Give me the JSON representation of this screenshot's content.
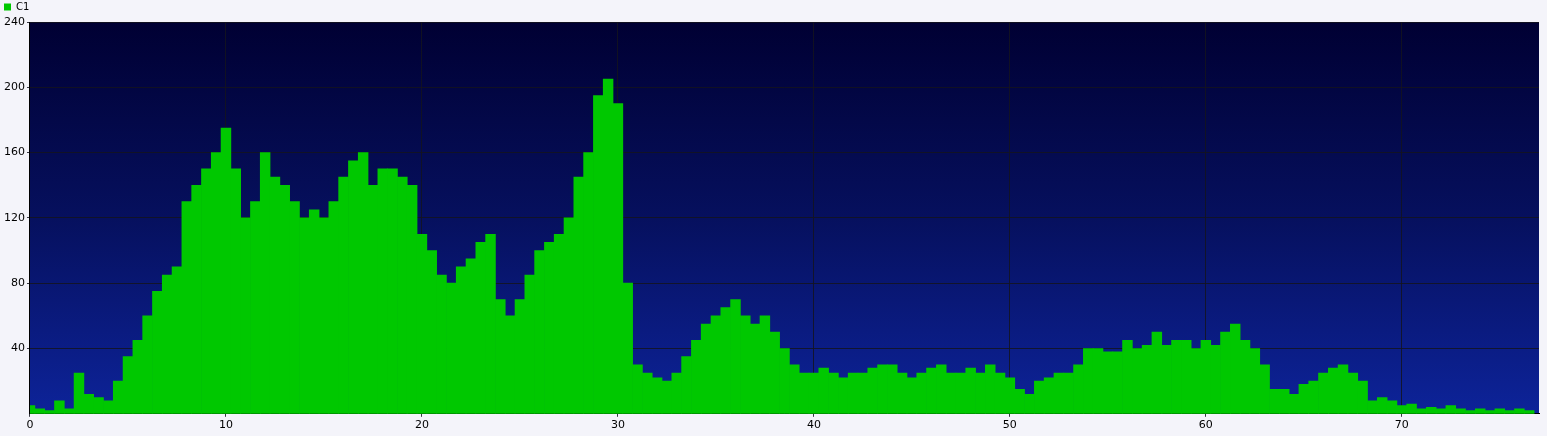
{
  "chart_data": {
    "type": "bar",
    "x": [
      0,
      0.5,
      1,
      1.5,
      2,
      2.5,
      3,
      3.5,
      4,
      4.5,
      5,
      5.5,
      6,
      6.5,
      7,
      7.5,
      8,
      8.5,
      9,
      9.5,
      10,
      10.5,
      11,
      11.5,
      12,
      12.5,
      13,
      13.5,
      14,
      14.5,
      15,
      15.5,
      16,
      16.5,
      17,
      17.5,
      18,
      18.5,
      19,
      19.5,
      20,
      20.5,
      21,
      21.5,
      22,
      22.5,
      23,
      23.5,
      24,
      24.5,
      25,
      25.5,
      26,
      26.5,
      27,
      27.5,
      28,
      28.5,
      29,
      29.5,
      30,
      30.5,
      31,
      31.5,
      32,
      32.5,
      33,
      33.5,
      34,
      34.5,
      35,
      35.5,
      36,
      36.5,
      37,
      37.5,
      38,
      38.5,
      39,
      39.5,
      40,
      40.5,
      41,
      41.5,
      42,
      42.5,
      43,
      43.5,
      44,
      44.5,
      45,
      45.5,
      46,
      46.5,
      47,
      47.5,
      48,
      48.5,
      49,
      49.5,
      50,
      50.5,
      51,
      51.5,
      52,
      52.5,
      53,
      53.5,
      54,
      54.5,
      55,
      55.5,
      56,
      56.5,
      57,
      57.5,
      58,
      58.5,
      59,
      59.5,
      60,
      60.5,
      61,
      61.5,
      62,
      62.5,
      63,
      63.5,
      64,
      64.5,
      65,
      65.5,
      66,
      66.5,
      67,
      67.5,
      68,
      68.5,
      69,
      69.5,
      70,
      70.5,
      71,
      71.5,
      72,
      72.5,
      73,
      73.5,
      74,
      74.5,
      75,
      75.5,
      76,
      76.5
    ],
    "series": [
      {
        "name": "C1",
        "color": "#00c800",
        "values": [
          5,
          3,
          2,
          8,
          3,
          25,
          12,
          10,
          8,
          20,
          35,
          45,
          60,
          75,
          85,
          90,
          130,
          140,
          150,
          160,
          175,
          150,
          120,
          130,
          160,
          145,
          140,
          130,
          120,
          125,
          120,
          130,
          145,
          155,
          160,
          140,
          150,
          150,
          145,
          140,
          110,
          100,
          85,
          80,
          90,
          95,
          105,
          110,
          70,
          60,
          70,
          85,
          100,
          105,
          110,
          120,
          145,
          160,
          195,
          205,
          190,
          80,
          30,
          25,
          22,
          20,
          25,
          35,
          45,
          55,
          60,
          65,
          70,
          60,
          55,
          60,
          50,
          40,
          30,
          25,
          25,
          28,
          25,
          22,
          25,
          25,
          28,
          30,
          30,
          25,
          22,
          25,
          28,
          30,
          25,
          25,
          28,
          25,
          30,
          25,
          22,
          15,
          12,
          20,
          22,
          25,
          25,
          30,
          40,
          40,
          38,
          38,
          45,
          40,
          42,
          50,
          42,
          45,
          45,
          40,
          45,
          42,
          50,
          55,
          45,
          40,
          30,
          15,
          15,
          12,
          18,
          20,
          25,
          28,
          30,
          25,
          20,
          8,
          10,
          8,
          5,
          6,
          3,
          4,
          3,
          5,
          3,
          2,
          3,
          2,
          3,
          2,
          3,
          2
        ]
      }
    ],
    "xlim": [
      0,
      77
    ],
    "xticks": [
      0,
      10,
      20,
      30,
      40,
      50,
      60,
      70
    ],
    "ylim": [
      0,
      240
    ],
    "yticks": [
      40,
      80,
      120,
      160,
      200,
      240
    ],
    "grid": true,
    "legend": "top-left"
  }
}
